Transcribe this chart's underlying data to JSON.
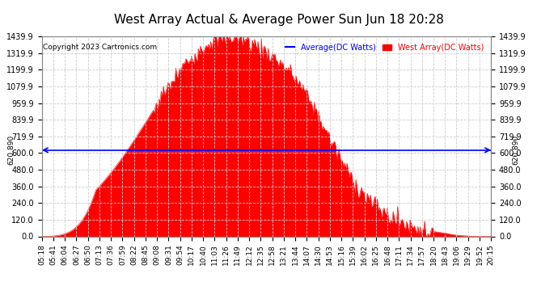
{
  "title": "West Array Actual & Average Power Sun Jun 18 20:28",
  "copyright": "Copyright 2023 Cartronics.com",
  "legend_average": "Average(DC Watts)",
  "legend_west": "West Array(DC Watts)",
  "average_value": 620.89,
  "ytick_values": [
    0.0,
    120.0,
    240.0,
    360.0,
    480.0,
    600.0,
    719.9,
    839.9,
    959.9,
    1079.9,
    1199.9,
    1319.9,
    1439.9
  ],
  "ytick_labels_left": [
    "0.0",
    "120.0",
    "240.0",
    "360.0",
    "480.0",
    "600.0",
    "719.9",
    "839.9",
    "959.9",
    "1079.9",
    "1199.9",
    "1319.9",
    "1439.9"
  ],
  "ytick_labels_right": [
    "0.0",
    "120.0",
    "240.0",
    "360.0",
    "480.0",
    "600.0",
    "719.9",
    "839.9",
    "959.9",
    "1079.9",
    "1199.9",
    "1319.9",
    "1439.9"
  ],
  "ymin": 0.0,
  "ymax": 1439.9,
  "fill_color": "#ff0000",
  "line_color": "#ff0000",
  "avg_line_color": "#0000ff",
  "background_color": "#ffffff",
  "grid_color": "#cccccc",
  "title_fontsize": 11,
  "copyright_fontsize": 6.5,
  "tick_fontsize": 7,
  "legend_fontsize": 7,
  "xtick_labels": [
    "05:18",
    "05:41",
    "06:04",
    "06:27",
    "06:50",
    "07:13",
    "07:36",
    "07:59",
    "08:22",
    "08:45",
    "09:08",
    "09:31",
    "09:54",
    "10:17",
    "10:40",
    "11:03",
    "11:26",
    "11:49",
    "12:12",
    "12:35",
    "12:58",
    "13:21",
    "13:44",
    "14:07",
    "14:30",
    "14:53",
    "15:16",
    "15:39",
    "16:02",
    "16:25",
    "16:48",
    "17:11",
    "17:34",
    "17:57",
    "18:20",
    "18:43",
    "19:06",
    "19:29",
    "19:52",
    "20:15"
  ],
  "n_points": 400
}
